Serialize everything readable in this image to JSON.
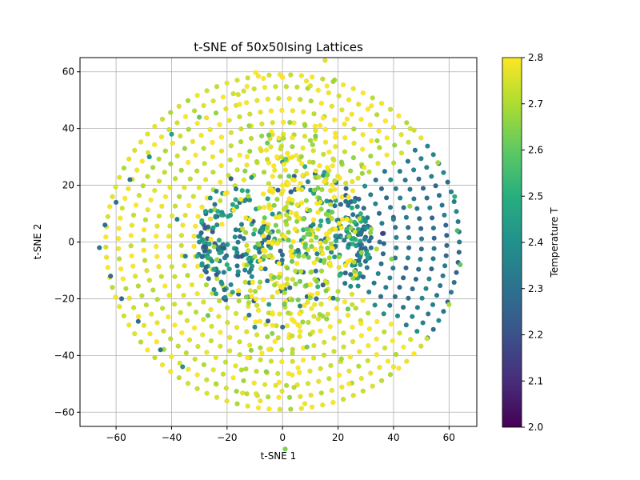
{
  "chart_data": {
    "type": "scatter",
    "title": "t-SNE of 50x50Ising Lattices",
    "xlabel": "t-SNE 1",
    "ylabel": "t-SNE 2",
    "xlim": [
      -73,
      70
    ],
    "ylim": [
      -65,
      65
    ],
    "x_ticks": [
      -60,
      -40,
      -20,
      0,
      20,
      40,
      60
    ],
    "y_ticks": [
      -60,
      -40,
      -20,
      0,
      20,
      40,
      60
    ],
    "x_tick_labels": [
      "−60",
      "−40",
      "−20",
      "0",
      "20",
      "40",
      "60"
    ],
    "y_tick_labels": [
      "−60",
      "−40",
      "−20",
      "0",
      "20",
      "40",
      "60"
    ],
    "grid": true,
    "colormap": "viridis",
    "colorbar": {
      "label": "Temperature T",
      "range": [
        2.0,
        2.8
      ],
      "ticks": [
        2.0,
        2.1,
        2.2,
        2.3,
        2.4,
        2.5,
        2.6,
        2.7,
        2.8
      ],
      "tick_labels": [
        "2.0",
        "2.1",
        "2.2",
        "2.3",
        "2.4",
        "2.5",
        "2.6",
        "2.7",
        "2.8"
      ]
    },
    "distribution": {
      "outer_radius": 59,
      "clusters": [
        {
          "region": "left-lobe",
          "center": [
            -30,
            -2
          ],
          "spread": [
            17,
            13
          ],
          "temperature": 2.36
        },
        {
          "region": "right-lobe",
          "center": [
            33,
            4
          ],
          "spread": [
            15,
            12
          ],
          "temperature": 2.38
        },
        {
          "region": "central-band",
          "center": [
            5,
            0
          ],
          "spread": [
            12,
            22
          ],
          "temperature": 2.75
        },
        {
          "region": "dark-spot",
          "center": [
            36,
            3
          ],
          "spread": [
            1.5,
            1.5
          ],
          "temperature": 2.15
        }
      ],
      "outer_ring_temperature_left": 2.3,
      "outer_ring_temperature_right": 2.78
    },
    "points": [
      [
        -66,
        -2,
        2.3
      ],
      [
        -64,
        6,
        2.3
      ],
      [
        -62,
        -12,
        2.28
      ],
      [
        -60,
        14,
        2.3
      ],
      [
        -58,
        -20,
        2.27
      ],
      [
        -55,
        22,
        2.3
      ],
      [
        -52,
        -28,
        2.28
      ],
      [
        -48,
        30,
        2.4
      ],
      [
        -44,
        -38,
        2.3
      ],
      [
        -40,
        38,
        2.45
      ],
      [
        -36,
        -44,
        2.4
      ],
      [
        -30,
        44,
        2.6
      ],
      [
        -24,
        -50,
        2.7
      ],
      [
        -16,
        52,
        2.75
      ],
      [
        -8,
        -56,
        2.78
      ],
      [
        0,
        58,
        2.8
      ],
      [
        8,
        -57,
        2.78
      ],
      [
        16,
        55,
        2.8
      ],
      [
        24,
        -50,
        2.8
      ],
      [
        32,
        48,
        2.8
      ],
      [
        40,
        -44,
        2.78
      ],
      [
        46,
        40,
        2.75
      ],
      [
        52,
        -34,
        2.75
      ],
      [
        56,
        28,
        2.7
      ],
      [
        60,
        -22,
        2.7
      ],
      [
        62,
        16,
        2.5
      ],
      [
        64,
        -8,
        2.6
      ],
      [
        63,
        4,
        2.55
      ],
      [
        -35,
        -5,
        2.35
      ],
      [
        -30,
        0,
        2.4
      ],
      [
        -25,
        5,
        2.45
      ],
      [
        -28,
        -10,
        2.3
      ],
      [
        -38,
        8,
        2.35
      ],
      [
        -20,
        -8,
        2.5
      ],
      [
        30,
        5,
        2.4
      ],
      [
        35,
        0,
        2.3
      ],
      [
        40,
        8,
        2.35
      ],
      [
        28,
        -8,
        2.45
      ],
      [
        36,
        3,
        2.15
      ],
      [
        25,
        12,
        2.5
      ],
      [
        0,
        20,
        2.8
      ],
      [
        5,
        10,
        2.78
      ],
      [
        -5,
        -5,
        2.75
      ],
      [
        10,
        -15,
        2.8
      ],
      [
        2,
        -25,
        2.7
      ],
      [
        -2,
        30,
        2.8
      ],
      [
        -10,
        -30,
        2.4
      ],
      [
        0,
        -30,
        2.3
      ],
      [
        -15,
        15,
        2.8
      ],
      [
        12,
        25,
        2.78
      ]
    ]
  }
}
